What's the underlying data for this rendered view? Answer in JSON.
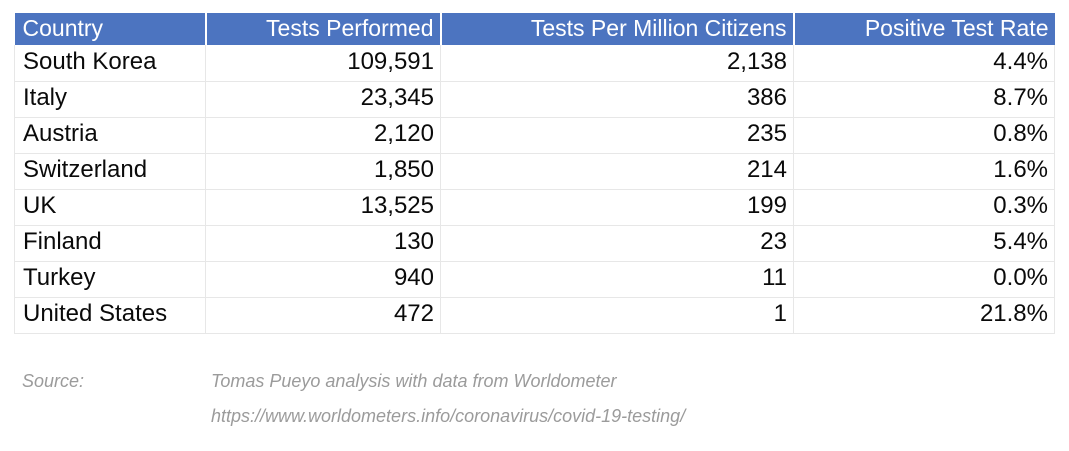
{
  "table": {
    "columns": [
      {
        "label": "Country",
        "align": "left"
      },
      {
        "label": "Tests Performed",
        "align": "right"
      },
      {
        "label": "Tests Per Million Citizens",
        "align": "right"
      },
      {
        "label": "Positive Test Rate",
        "align": "right"
      }
    ],
    "rows": [
      [
        "South Korea",
        "109,591",
        "2,138",
        "4.4%"
      ],
      [
        "Italy",
        "23,345",
        "386",
        "8.7%"
      ],
      [
        "Austria",
        "2,120",
        "235",
        "0.8%"
      ],
      [
        "Switzerland",
        "1,850",
        "214",
        "1.6%"
      ],
      [
        "UK",
        "13,525",
        "199",
        "0.3%"
      ],
      [
        "Finland",
        "130",
        "23",
        "5.4%"
      ],
      [
        "Turkey",
        "940",
        "11",
        "0.0%"
      ],
      [
        "United States",
        "472",
        "1",
        "21.8%"
      ]
    ]
  },
  "source": {
    "label": "Source:",
    "line1": "Tomas Pueyo analysis with data from Worldometer",
    "line2": "https://www.worldometers.info/coronavirus/covid-19-testing/"
  },
  "colors": {
    "header_bg": "#4C74C0",
    "header_text": "#FFFFFF",
    "body_text": "#0A0A0A",
    "grid_line": "#E7E7E7",
    "source_text": "#9B9B9B"
  },
  "chart_data": {
    "type": "table",
    "columns": [
      "Country",
      "Tests Performed",
      "Tests Per Million Citizens",
      "Positive Test Rate"
    ],
    "rows": [
      {
        "country": "South Korea",
        "tests_performed": 109591,
        "tests_per_million": 2138,
        "positive_test_rate_pct": 4.4
      },
      {
        "country": "Italy",
        "tests_performed": 23345,
        "tests_per_million": 386,
        "positive_test_rate_pct": 8.7
      },
      {
        "country": "Austria",
        "tests_performed": 2120,
        "tests_per_million": 235,
        "positive_test_rate_pct": 0.8
      },
      {
        "country": "Switzerland",
        "tests_performed": 1850,
        "tests_per_million": 214,
        "positive_test_rate_pct": 1.6
      },
      {
        "country": "UK",
        "tests_performed": 13525,
        "tests_per_million": 199,
        "positive_test_rate_pct": 0.3
      },
      {
        "country": "Finland",
        "tests_performed": 130,
        "tests_per_million": 23,
        "positive_test_rate_pct": 5.4
      },
      {
        "country": "Turkey",
        "tests_performed": 940,
        "tests_per_million": 11,
        "positive_test_rate_pct": 0.0
      },
      {
        "country": "United States",
        "tests_performed": 472,
        "tests_per_million": 1,
        "positive_test_rate_pct": 21.8
      }
    ],
    "source_label": "Source:",
    "source_line1": "Tomas Pueyo analysis with data from Worldometer",
    "source_line2": "https://www.worldometers.info/coronavirus/covid-19-testing/"
  }
}
